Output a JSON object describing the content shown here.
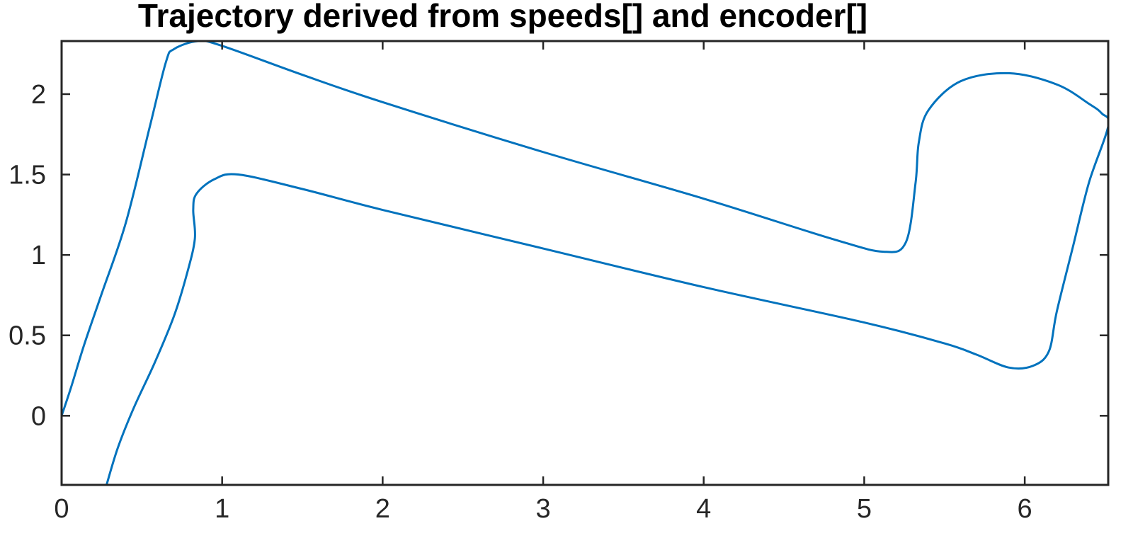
{
  "chart_data": {
    "type": "line",
    "title": "Trajectory derived from speeds[] and encoder[]",
    "xlabel": "",
    "ylabel": "",
    "xlim": [
      0,
      6.52
    ],
    "ylim": [
      -0.43,
      2.33
    ],
    "xticks": [
      0,
      1,
      2,
      3,
      4,
      5,
      6
    ],
    "xtick_labels": [
      "0",
      "1",
      "2",
      "3",
      "4",
      "5",
      "6"
    ],
    "yticks": [
      0,
      0.5,
      1,
      1.5,
      2
    ],
    "ytick_labels": [
      "0",
      "0.5",
      "1",
      "1.5",
      "2"
    ],
    "grid": false,
    "legend": "none",
    "series": [
      {
        "color": "#0072BD",
        "x": [
          0.28,
          0.35,
          0.45,
          0.58,
          0.7,
          0.78,
          0.83,
          0.82,
          0.84,
          0.95,
          1.1,
          1.5,
          2.0,
          3.0,
          4.0,
          5.0,
          5.5,
          5.7,
          5.9,
          6.05,
          6.15,
          6.2,
          6.3,
          6.4,
          6.52,
          6.48,
          6.4,
          6.2,
          5.9,
          5.6,
          5.4,
          5.34,
          5.32,
          5.26,
          5.12,
          4.8,
          4.0,
          3.0,
          2.0,
          1.5,
          1.0,
          0.85,
          0.7,
          0.65,
          0.55,
          0.4,
          0.25,
          0.14,
          0.06,
          0.0
        ],
        "y": [
          -0.43,
          -0.2,
          0.05,
          0.33,
          0.62,
          0.88,
          1.1,
          1.28,
          1.38,
          1.47,
          1.5,
          1.41,
          1.28,
          1.04,
          0.8,
          0.58,
          0.45,
          0.38,
          0.3,
          0.31,
          0.4,
          0.65,
          1.05,
          1.45,
          1.8,
          1.88,
          1.94,
          2.06,
          2.13,
          2.08,
          1.9,
          1.7,
          1.45,
          1.08,
          1.02,
          1.1,
          1.35,
          1.64,
          1.95,
          2.12,
          2.3,
          2.33,
          2.28,
          2.2,
          1.8,
          1.2,
          0.76,
          0.44,
          0.18,
          0.0
        ]
      }
    ]
  }
}
